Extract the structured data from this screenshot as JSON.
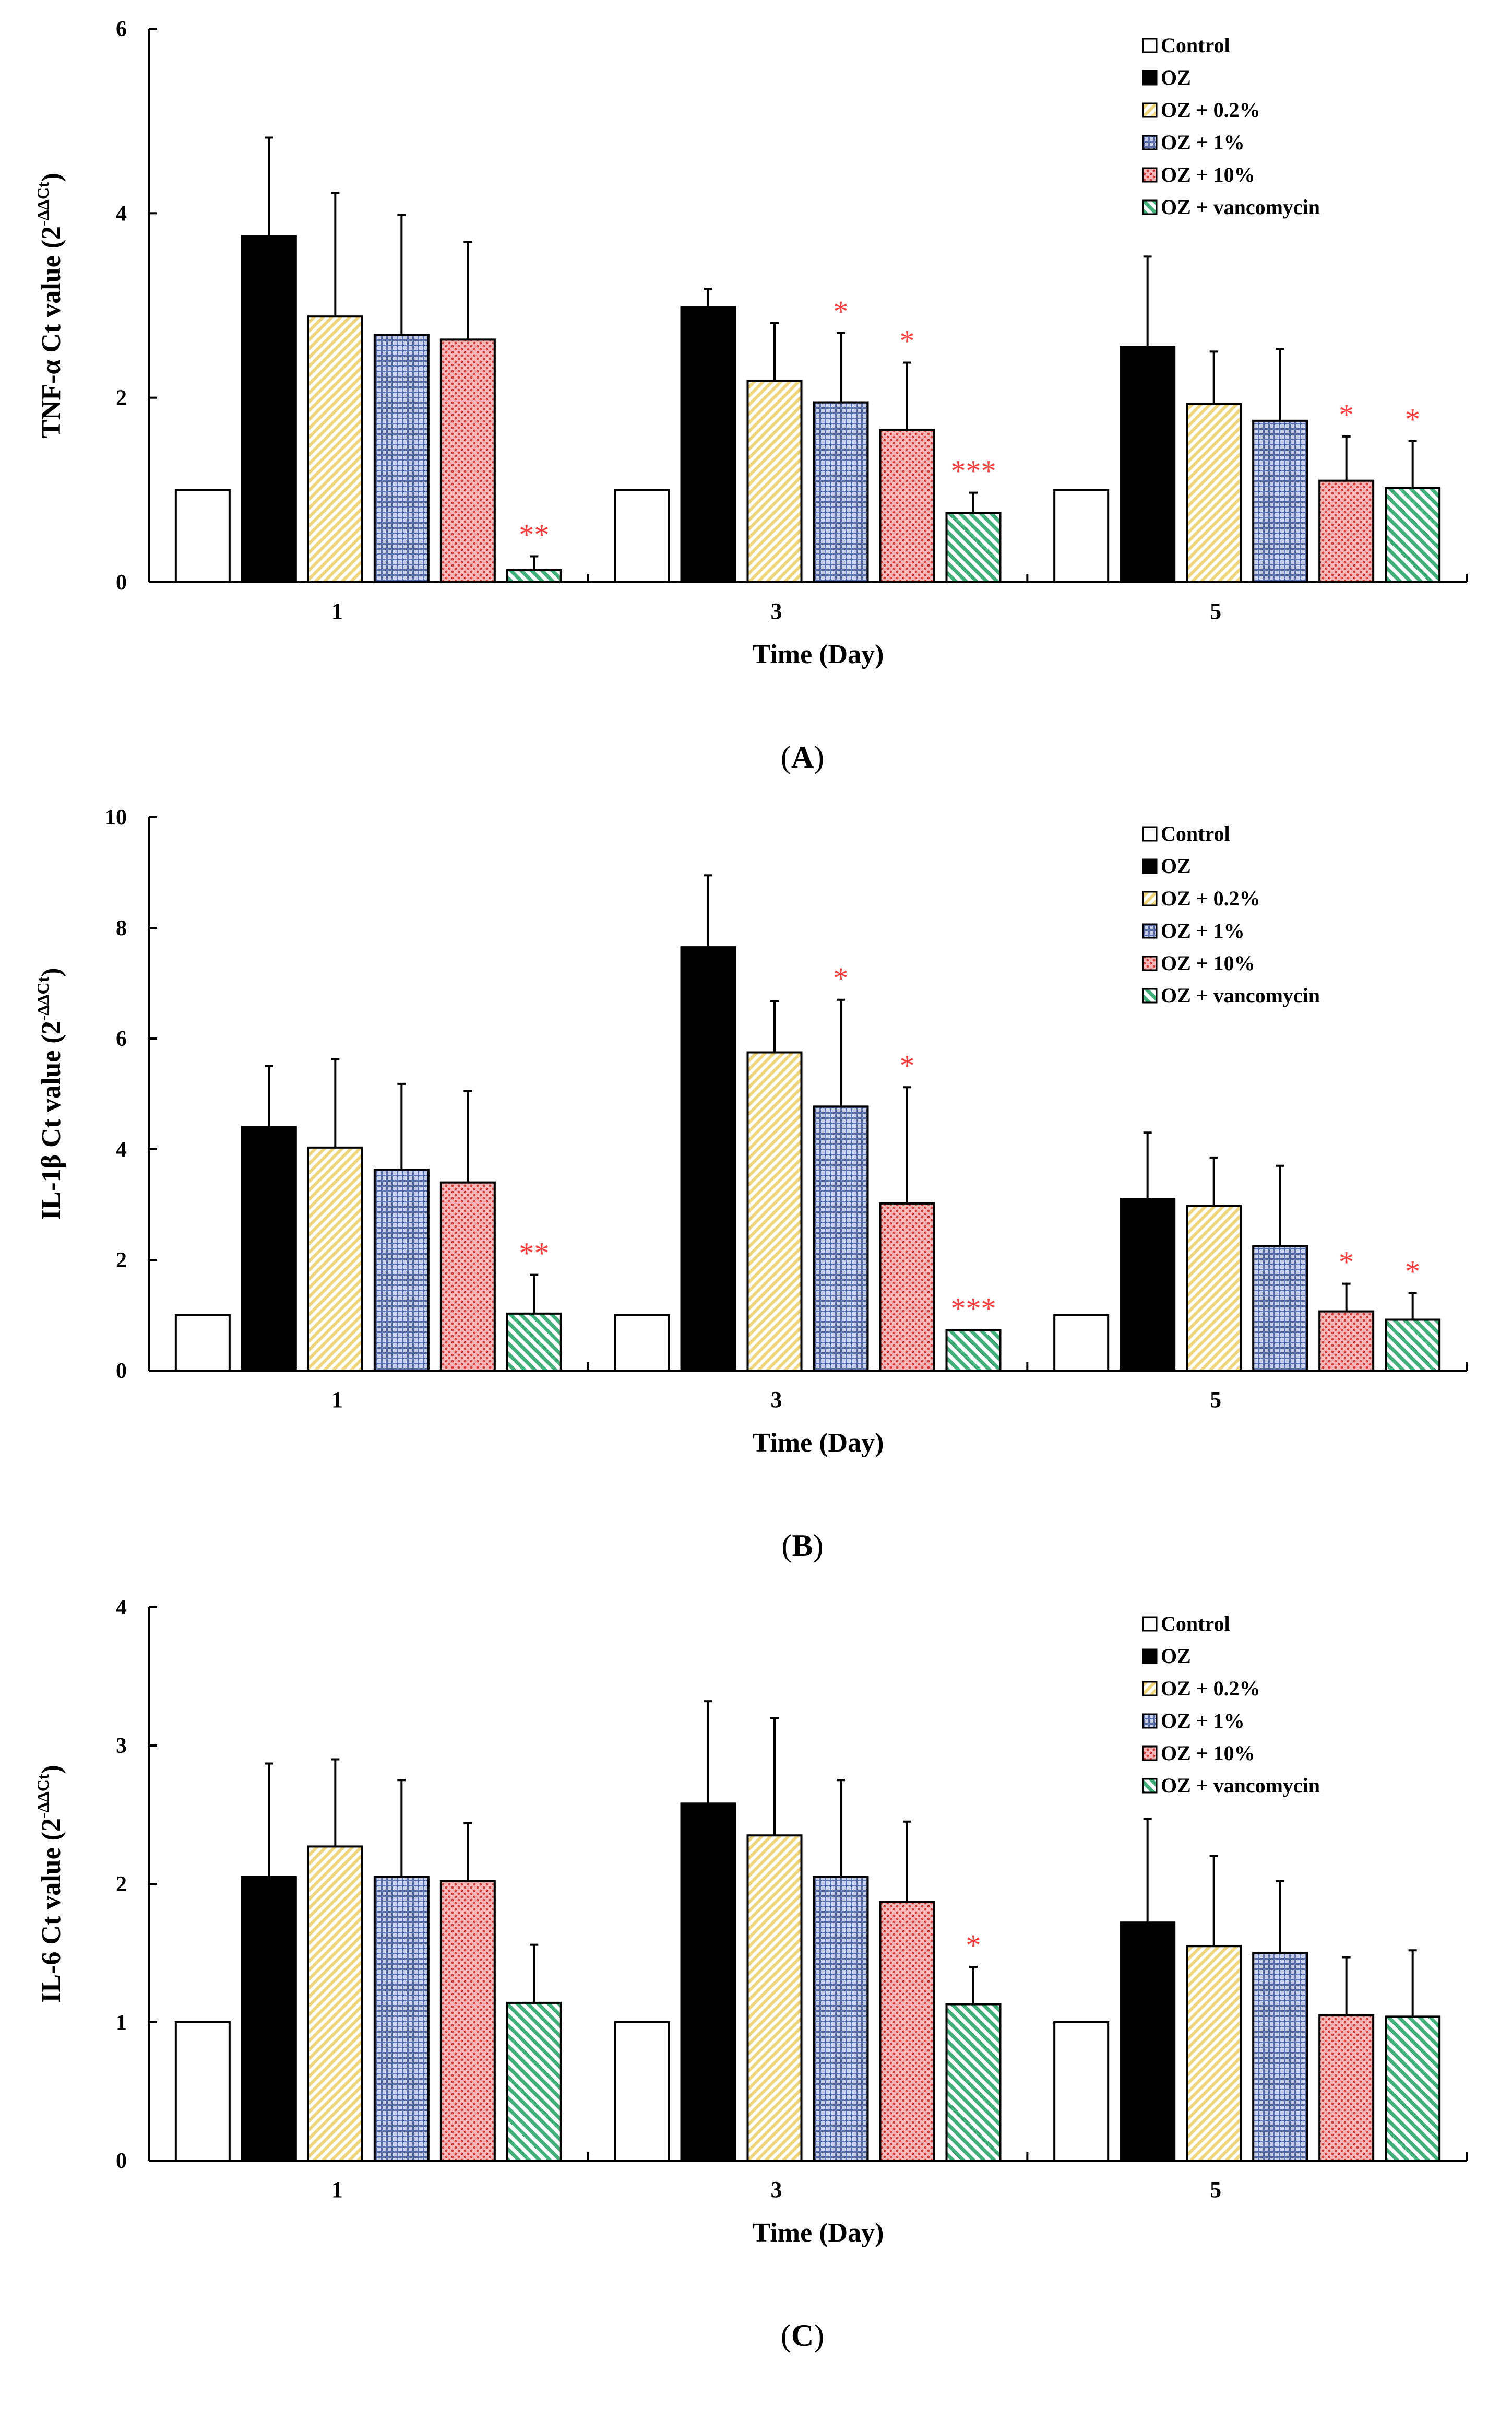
{
  "chart_data": [
    {
      "type": "bar",
      "panel_label": "A",
      "title": "",
      "xlabel": "Time (Day)",
      "ylabel_main": "TNF-α Ct value (2",
      "ylabel_sup": "-ΔΔCt",
      "ylabel_close": ")",
      "ylim": [
        0,
        6
      ],
      "yticks": [
        0,
        2,
        4,
        6
      ],
      "categories": [
        "1",
        "3",
        "5"
      ],
      "legend_position": "top-right",
      "series": [
        {
          "name": "Control",
          "values": [
            1.0,
            1.0,
            1.0
          ],
          "errors": [
            0,
            0,
            0
          ],
          "sig": [
            "",
            "",
            ""
          ]
        },
        {
          "name": "OZ",
          "values": [
            3.75,
            2.98,
            2.55
          ],
          "errors": [
            1.07,
            0.2,
            0.98
          ],
          "sig": [
            "",
            "",
            ""
          ]
        },
        {
          "name": "OZ + 0.2%",
          "values": [
            2.88,
            2.18,
            1.93
          ],
          "errors": [
            1.34,
            0.63,
            0.57
          ],
          "sig": [
            "",
            "",
            ""
          ]
        },
        {
          "name": "OZ + 1%",
          "values": [
            2.68,
            1.95,
            1.75
          ],
          "errors": [
            1.3,
            0.75,
            0.78
          ],
          "sig": [
            "",
            "*",
            ""
          ]
        },
        {
          "name": "OZ + 10%",
          "values": [
            2.63,
            1.65,
            1.1
          ],
          "errors": [
            1.06,
            0.73,
            0.48
          ],
          "sig": [
            "",
            "*",
            "*"
          ]
        },
        {
          "name": "OZ + vancomycin",
          "values": [
            0.13,
            0.75,
            1.02
          ],
          "errors": [
            0.15,
            0.22,
            0.51
          ],
          "sig": [
            "**",
            "***",
            "*"
          ]
        }
      ]
    },
    {
      "type": "bar",
      "panel_label": "B",
      "title": "",
      "xlabel": "Time (Day)",
      "ylabel_main": "IL-1β Ct value (2",
      "ylabel_sup": "-ΔΔCt",
      "ylabel_close": ")",
      "ylim": [
        0,
        10
      ],
      "yticks": [
        0,
        2,
        4,
        6,
        8,
        10
      ],
      "categories": [
        "1",
        "3",
        "5"
      ],
      "legend_position": "top-right",
      "series": [
        {
          "name": "Control",
          "values": [
            1.0,
            1.0,
            1.0
          ],
          "errors": [
            0,
            0,
            0
          ],
          "sig": [
            "",
            "",
            ""
          ]
        },
        {
          "name": "OZ",
          "values": [
            4.4,
            7.65,
            3.1
          ],
          "errors": [
            1.1,
            1.3,
            1.2
          ],
          "sig": [
            "",
            "",
            ""
          ]
        },
        {
          "name": "OZ + 0.2%",
          "values": [
            4.03,
            5.75,
            2.98
          ],
          "errors": [
            1.6,
            0.92,
            0.87
          ],
          "sig": [
            "",
            "",
            ""
          ]
        },
        {
          "name": "OZ + 1%",
          "values": [
            3.63,
            4.77,
            2.25
          ],
          "errors": [
            1.55,
            1.93,
            1.45
          ],
          "sig": [
            "",
            "*",
            ""
          ]
        },
        {
          "name": "OZ + 10%",
          "values": [
            3.4,
            3.02,
            1.07
          ],
          "errors": [
            1.65,
            2.1,
            0.5
          ],
          "sig": [
            "",
            "*",
            "*"
          ]
        },
        {
          "name": "OZ + vancomycin",
          "values": [
            1.03,
            0.73,
            0.92
          ],
          "errors": [
            0.7,
            0,
            0.48
          ],
          "sig": [
            "**",
            "***",
            "*"
          ]
        }
      ]
    },
    {
      "type": "bar",
      "panel_label": "C",
      "title": "",
      "xlabel": "Time (Day)",
      "ylabel_main": "IL-6 Ct value (2",
      "ylabel_sup": "-ΔΔCt",
      "ylabel_close": ")",
      "ylim": [
        0,
        4
      ],
      "yticks": [
        0,
        1,
        2,
        3,
        4
      ],
      "categories": [
        "1",
        "3",
        "5"
      ],
      "legend_position": "top-right",
      "series": [
        {
          "name": "Control",
          "values": [
            1.0,
            1.0,
            1.0
          ],
          "errors": [
            0,
            0,
            0
          ],
          "sig": [
            "",
            "",
            ""
          ]
        },
        {
          "name": "OZ",
          "values": [
            2.05,
            2.58,
            1.72
          ],
          "errors": [
            0.82,
            0.74,
            0.75
          ],
          "sig": [
            "",
            "",
            ""
          ]
        },
        {
          "name": "OZ + 0.2%",
          "values": [
            2.27,
            2.35,
            1.55
          ],
          "errors": [
            0.63,
            0.85,
            0.65
          ],
          "sig": [
            "",
            "",
            ""
          ]
        },
        {
          "name": "OZ + 1%",
          "values": [
            2.05,
            2.05,
            1.5
          ],
          "errors": [
            0.7,
            0.7,
            0.52
          ],
          "sig": [
            "",
            "",
            ""
          ]
        },
        {
          "name": "OZ + 10%",
          "values": [
            2.02,
            1.87,
            1.05
          ],
          "errors": [
            0.42,
            0.58,
            0.42
          ],
          "sig": [
            "",
            "",
            ""
          ]
        },
        {
          "name": "OZ + vancomycin",
          "values": [
            1.14,
            1.13,
            1.04
          ],
          "errors": [
            0.42,
            0.27,
            0.48
          ],
          "sig": [
            "",
            "*",
            ""
          ]
        }
      ]
    }
  ],
  "colors": {
    "control": "#ffffff",
    "oz": "#000000",
    "oz_02": "#f3dc8a",
    "oz_1": "#6f80b8",
    "oz_10": "#e05555",
    "oz_vanco": "#3fb07a",
    "significance": "#ff3b3b",
    "axis": "#000000"
  }
}
